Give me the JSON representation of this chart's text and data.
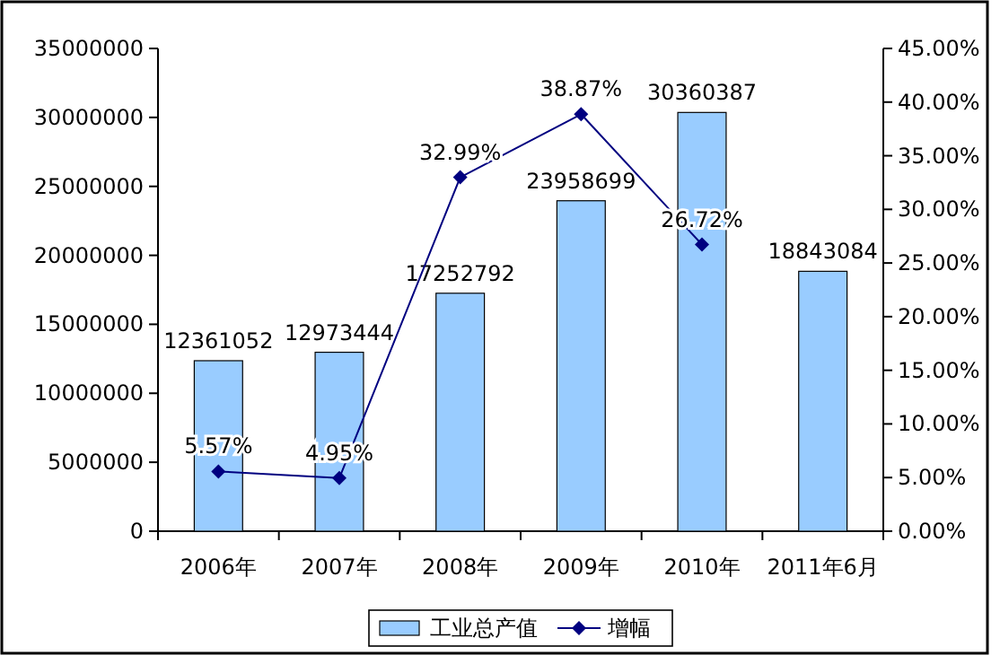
{
  "chart_data": {
    "type": "bar",
    "categories": [
      "2006年",
      "2007年",
      "2008年",
      "2009年",
      "2010年",
      "2011年6月"
    ],
    "series": [
      {
        "name": "工业总产值",
        "color": "#99ccff",
        "values": [
          12361052,
          12973444,
          17252792,
          23958699,
          30360387,
          18843084
        ],
        "data_labels": true
      },
      {
        "name": "增幅",
        "type": "line",
        "axis": "y2",
        "color": "#000080",
        "marker": "diamond",
        "values": [
          5.57,
          4.95,
          32.99,
          38.87,
          26.72,
          null
        ],
        "value_labels": [
          "5.57%",
          "4.95%",
          "32.99%",
          "38.87%",
          "26.72%",
          null
        ]
      }
    ],
    "ylim": [
      0,
      35000000
    ],
    "yticks": [
      0,
      5000000,
      10000000,
      15000000,
      20000000,
      25000000,
      30000000,
      35000000
    ],
    "y2lim": [
      0,
      45
    ],
    "y2ticks": [
      {
        "value": 0,
        "label": "0.00%"
      },
      {
        "value": 5,
        "label": "5.00%"
      },
      {
        "value": 10,
        "label": "10.00%"
      },
      {
        "value": 15,
        "label": "15.00%"
      },
      {
        "value": 20,
        "label": "20.00%"
      },
      {
        "value": 25,
        "label": "25.00%"
      },
      {
        "value": 30,
        "label": "30.00%"
      },
      {
        "value": 35,
        "label": "35.00%"
      },
      {
        "value": 40,
        "label": "40.00%"
      },
      {
        "value": 45,
        "label": "45.00%"
      }
    ],
    "legend": "bottom",
    "grid": false
  }
}
